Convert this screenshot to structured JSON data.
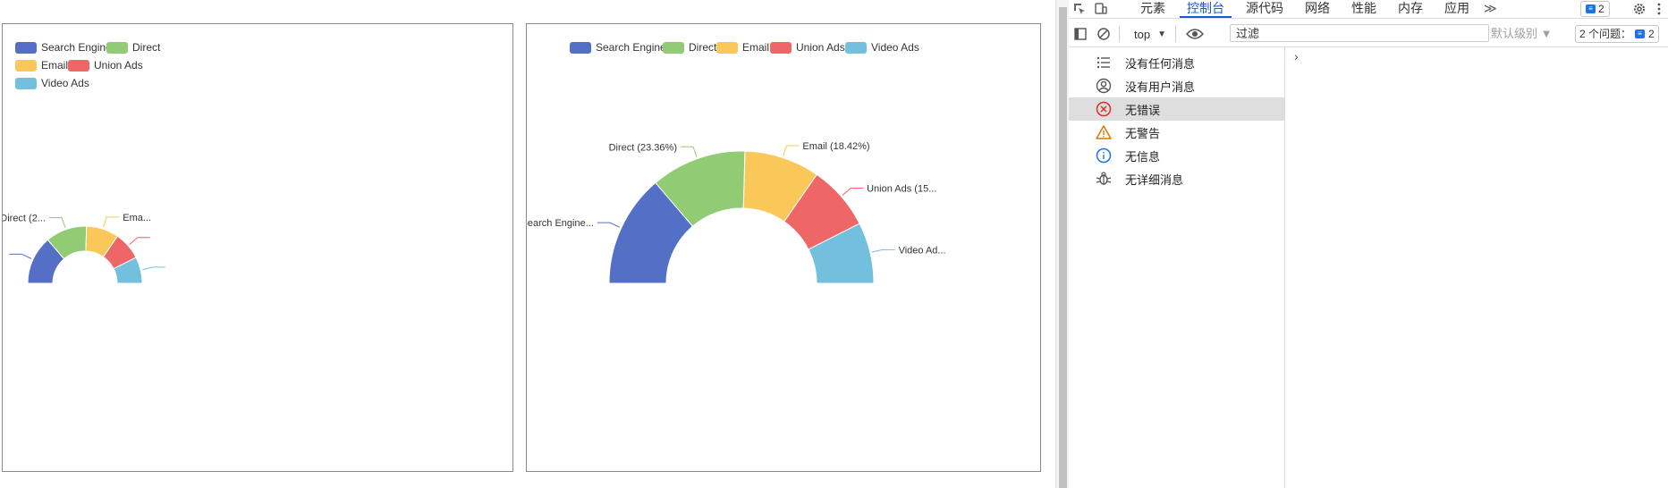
{
  "charts": [
    {
      "id": "left",
      "legend": [
        "Search Engine",
        "Direct",
        "Email",
        "Union Ads",
        "Video Ads"
      ],
      "labels": [
        "",
        "Direct (2...",
        "Ema...",
        "",
        ""
      ]
    },
    {
      "id": "right",
      "legend": [
        "Search Engine",
        "Direct",
        "Email",
        "Union Ads",
        "Video Ads"
      ],
      "labels": [
        "Search Engine...",
        "Direct (23.36%)",
        "Email (18.42%)",
        "Union Ads (15...",
        "Video Ad..."
      ]
    }
  ],
  "chart_data": [
    {
      "type": "pie",
      "variant": "half-doughnut",
      "categories": [
        "Search Engine",
        "Direct",
        "Email",
        "Union Ads",
        "Video Ads"
      ],
      "values": [
        27.5,
        23.36,
        18.42,
        15.8,
        14.92
      ],
      "colors": [
        "#5470c6",
        "#91cc75",
        "#fac858",
        "#ee6666",
        "#73c0de"
      ],
      "legend_position": "top-left"
    },
    {
      "type": "pie",
      "variant": "half-doughnut",
      "categories": [
        "Search Engine",
        "Direct",
        "Email",
        "Union Ads",
        "Video Ads"
      ],
      "values": [
        27.5,
        23.36,
        18.42,
        15.8,
        14.92
      ],
      "colors": [
        "#5470c6",
        "#91cc75",
        "#fac858",
        "#ee6666",
        "#73c0de"
      ],
      "legend_position": "top"
    }
  ],
  "devtools": {
    "tabs": [
      "元素",
      "控制台",
      "源代码",
      "网络",
      "性能",
      "内存",
      "应用"
    ],
    "active_tab": "控制台",
    "more": "≫",
    "top_badge": "2",
    "context": "top",
    "filter_placeholder": "过滤",
    "level": "默认级别 ▼",
    "issues_label": "2 个问题：",
    "issues_count": "2",
    "sidebar": [
      {
        "label": "没有任何消息",
        "icon": "list-icon"
      },
      {
        "label": "没有用户消息",
        "icon": "user-icon"
      },
      {
        "label": "无错误",
        "icon": "error-icon",
        "selected": true
      },
      {
        "label": "无警告",
        "icon": "warning-icon"
      },
      {
        "label": "无信息",
        "icon": "info-icon"
      },
      {
        "label": "无详细消息",
        "icon": "bug-icon"
      }
    ],
    "prompt": "›"
  }
}
